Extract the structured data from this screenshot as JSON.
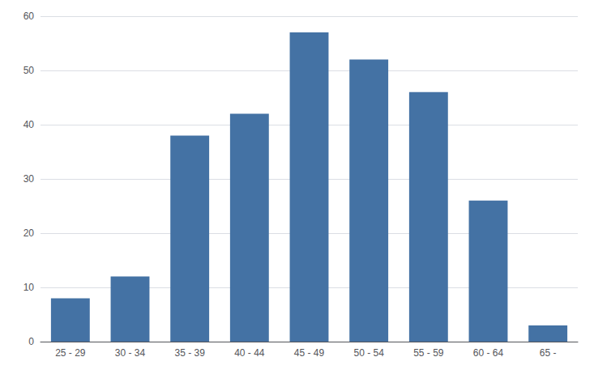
{
  "chart_data": {
    "type": "bar",
    "categories": [
      "25 - 29",
      "30 - 34",
      "35 - 39",
      "40 - 44",
      "45 - 49",
      "50 - 54",
      "55 - 59",
      "60 - 64",
      "65 -"
    ],
    "values": [
      8,
      12,
      38,
      42,
      57,
      52,
      46,
      26,
      3
    ],
    "color": "#4472a4",
    "ylim": [
      0,
      60
    ],
    "yticks": [
      0,
      10,
      20,
      30,
      40,
      50,
      60
    ],
    "grid": true
  }
}
